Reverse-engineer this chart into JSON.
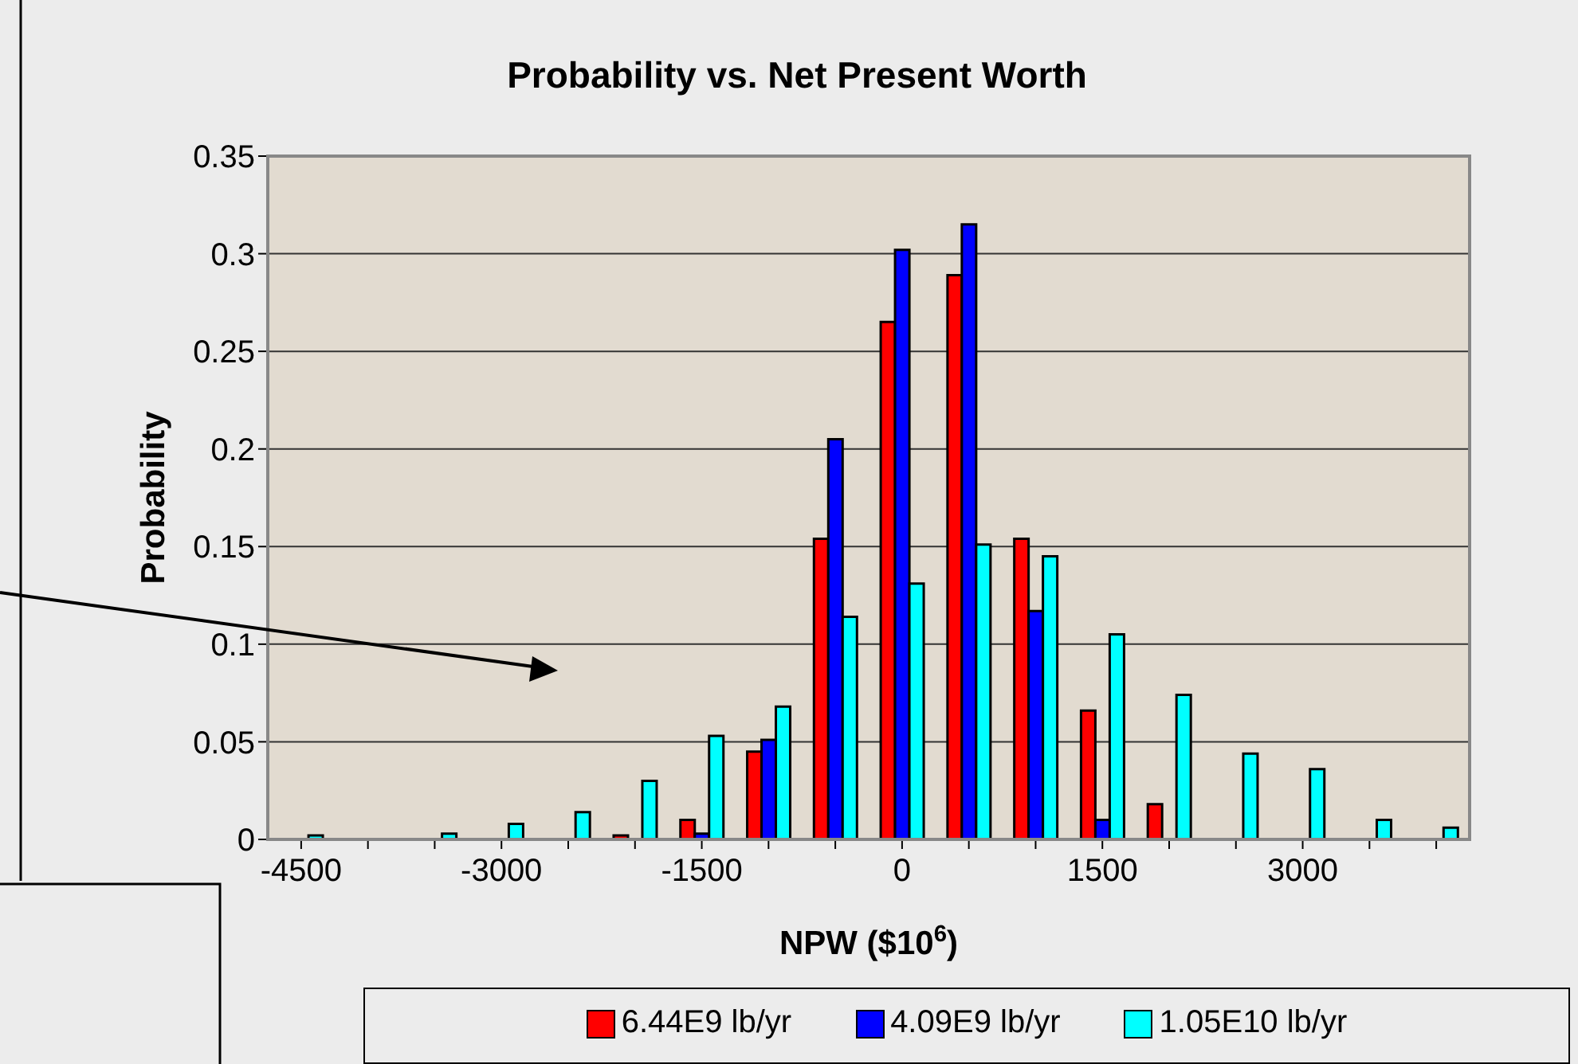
{
  "chart_data": {
    "type": "bar",
    "title": "Probability vs. Net Present Worth",
    "xlabel": "NPW ($10$^{6}$)",
    "ylabel": "Probability",
    "categories": [
      "-4500",
      null,
      null,
      "-3000",
      null,
      null,
      "-1500",
      null,
      null,
      "0",
      null,
      null,
      "1500",
      null,
      null,
      "3000",
      null,
      null
    ],
    "series": [
      {
        "name": "6.44E9 lb/yr",
        "color": "#ff0000",
        "values": [
          0,
          0,
          0,
          0,
          0,
          0.002,
          0.01,
          0.045,
          0.154,
          0.265,
          0.289,
          0.154,
          0.066,
          0.018,
          0,
          0,
          0,
          0
        ]
      },
      {
        "name": "4.09E9 lb/yr",
        "color": "#0000ff",
        "values": [
          0,
          0,
          0,
          0,
          0,
          0,
          0.003,
          0.051,
          0.205,
          0.302,
          0.315,
          0.117,
          0.01,
          null,
          0,
          0,
          0,
          0
        ]
      },
      {
        "name": "1.05E10 lb/yr",
        "color": "#00ffff",
        "values": [
          0.002,
          0,
          0.003,
          0.008,
          0.014,
          0.03,
          0.053,
          0.068,
          0.114,
          0.131,
          0.151,
          0.145,
          0.105,
          0.074,
          0.044,
          0.036,
          0.01,
          0.006
        ]
      }
    ],
    "ylim": [
      0,
      0.35
    ],
    "yticks": [
      0,
      0.05,
      0.1,
      0.15,
      0.2,
      0.25,
      0.3,
      0.35
    ],
    "grid": "y",
    "legend": "bottom"
  }
}
